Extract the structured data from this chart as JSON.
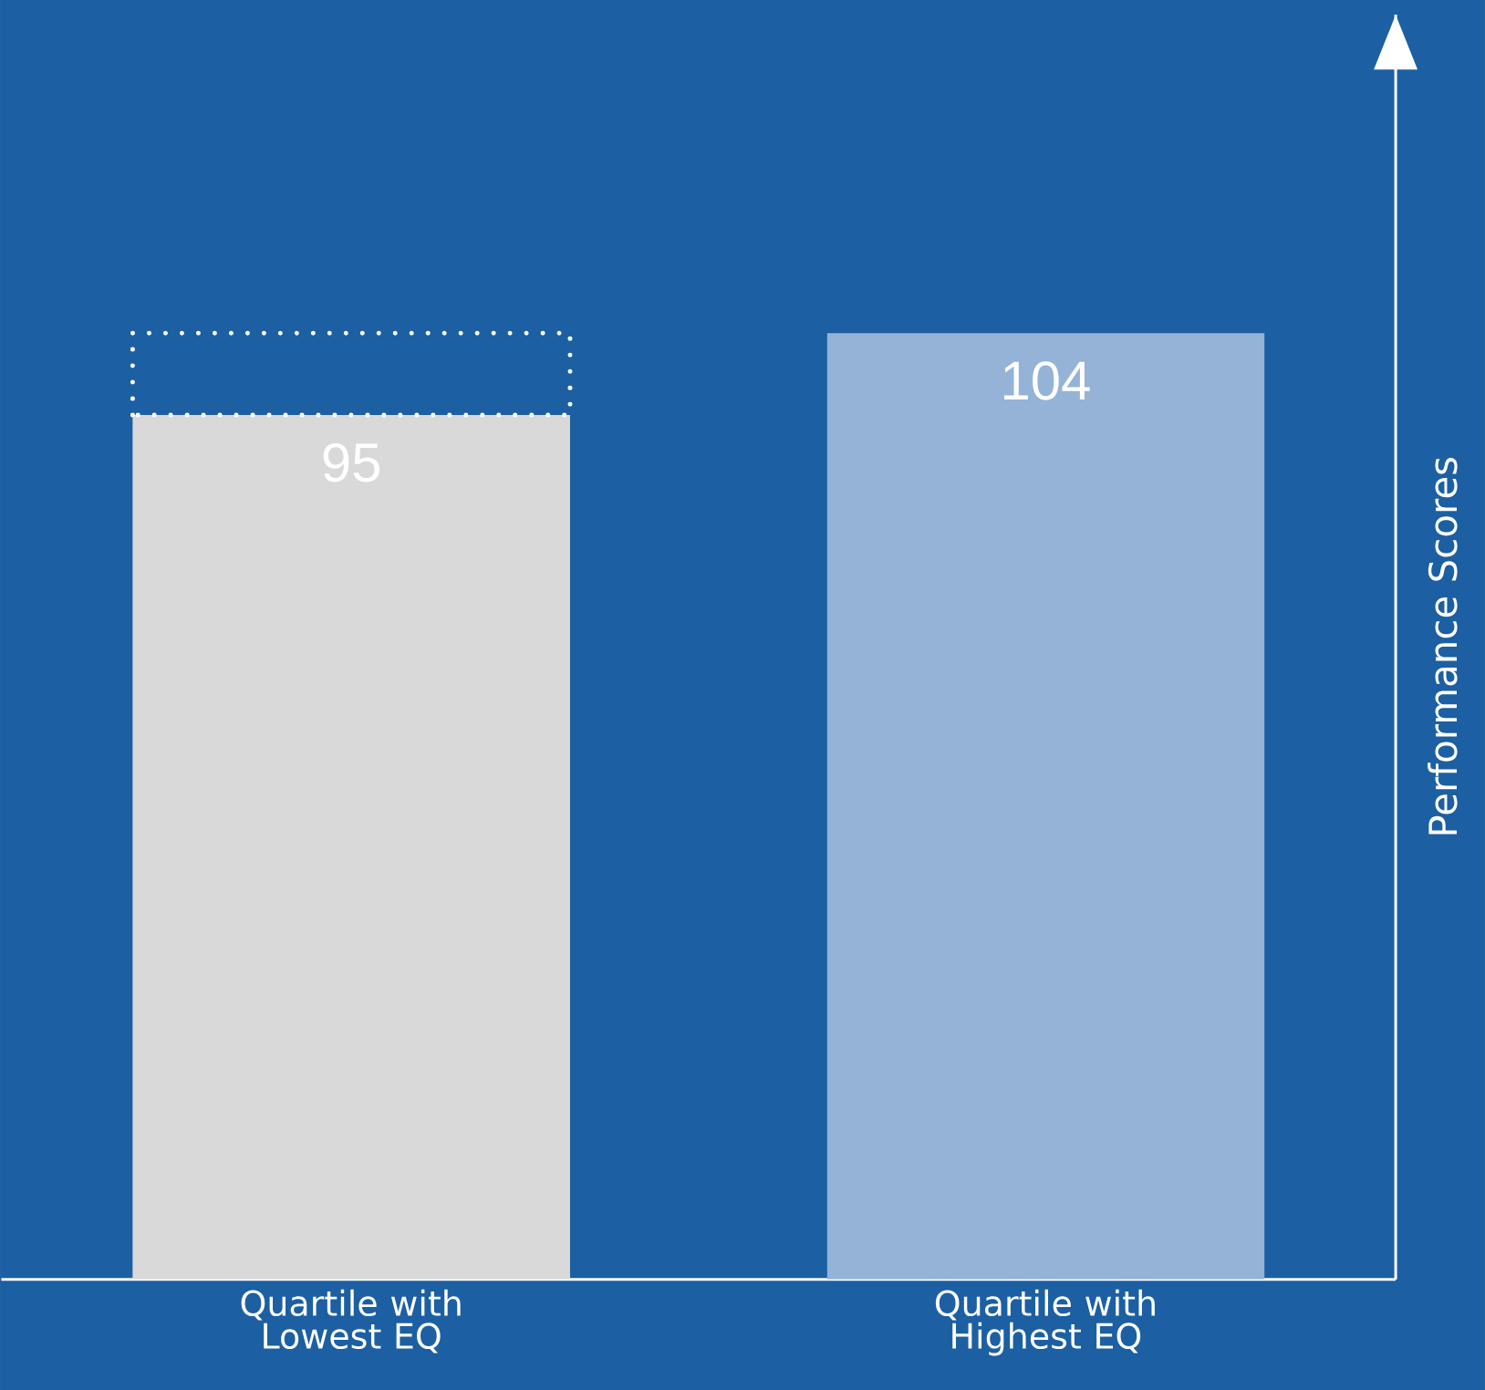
{
  "chart_data": {
    "type": "bar",
    "stacked": true,
    "categories": [
      "Quartile with Lowest EQ",
      "Quartile with Highest EQ"
    ],
    "series": [
      {
        "colors": [
          "#d9d9d9",
          "#94b3d6"
        ],
        "values": [
          95,
          104
        ],
        "value_labels": [
          "95",
          "104"
        ]
      },
      {
        "color": "#1c5fa2",
        "values": [
          9,
          null
        ]
      }
    ],
    "ylabel": "Performance Scores",
    "ylim": [
      0,
      139
    ],
    "tick_labels": "x"
  }
}
